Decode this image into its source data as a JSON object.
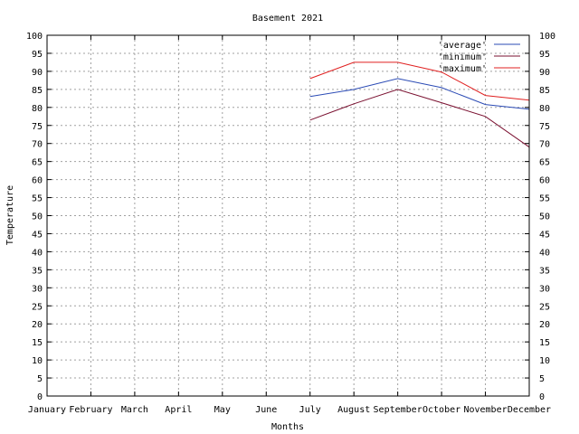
{
  "chart_data": {
    "type": "line",
    "title": "Basement 2021",
    "xlabel": "Months",
    "ylabel": "Temperature",
    "categories": [
      "January",
      "February",
      "March",
      "April",
      "May",
      "June",
      "July",
      "August",
      "September",
      "October",
      "November",
      "December"
    ],
    "ylim": [
      0,
      100
    ],
    "yticks": [
      0,
      5,
      10,
      15,
      20,
      25,
      30,
      35,
      40,
      45,
      50,
      55,
      60,
      65,
      70,
      75,
      80,
      85,
      90,
      95,
      100
    ],
    "grid": true,
    "legend_position": "top-right",
    "series": [
      {
        "name": "'average'",
        "color": "#2b4bb5",
        "values": [
          null,
          null,
          null,
          null,
          null,
          null,
          83.0,
          85.0,
          88.0,
          85.5,
          80.8,
          79.5
        ]
      },
      {
        "name": "'minimum'",
        "color": "#7a1030",
        "values": [
          null,
          null,
          null,
          null,
          null,
          null,
          76.5,
          81.0,
          85.0,
          81.3,
          77.5,
          69.0
        ]
      },
      {
        "name": "'maximum'",
        "color": "#e02020",
        "values": [
          null,
          null,
          null,
          null,
          null,
          null,
          88.0,
          92.5,
          92.5,
          89.8,
          83.3,
          82.0
        ]
      }
    ]
  }
}
